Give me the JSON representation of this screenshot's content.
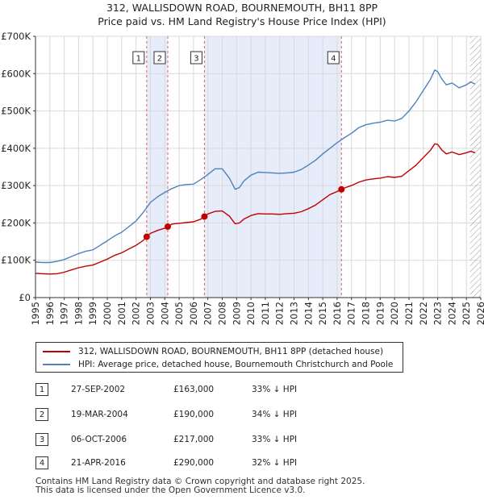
{
  "title_line1": "312, WALLISDOWN ROAD, BOURNEMOUTH, BH11 8PP",
  "title_line2": "Price paid vs. HM Land Registry's House Price Index (HPI)",
  "colors": {
    "property": "#c00000",
    "hpi": "#4f81bd",
    "shade": "#e6ecf9",
    "marker_line": "#e06060",
    "hatch": "#888888"
  },
  "chart_data": {
    "type": "line",
    "xlim": [
      1995,
      2026
    ],
    "ylim": [
      0,
      700000
    ],
    "x_ticks": [
      "1995",
      "1996",
      "1997",
      "1998",
      "1999",
      "2000",
      "2001",
      "2002",
      "2003",
      "2004",
      "2005",
      "2006",
      "2007",
      "2008",
      "2009",
      "2010",
      "2011",
      "2012",
      "2013",
      "2014",
      "2015",
      "2016",
      "2017",
      "2018",
      "2019",
      "2020",
      "2021",
      "2022",
      "2023",
      "2024",
      "2025",
      "2026"
    ],
    "y_ticks": [
      {
        "value": 0,
        "label": "£0"
      },
      {
        "value": 100000,
        "label": "£100K"
      },
      {
        "value": 200000,
        "label": "£200K"
      },
      {
        "value": 300000,
        "label": "£300K"
      },
      {
        "value": 400000,
        "label": "£400K"
      },
      {
        "value": 500000,
        "label": "£500K"
      },
      {
        "value": 600000,
        "label": "£600K"
      },
      {
        "value": 700000,
        "label": "£700K"
      }
    ],
    "hatch_from": 2025.25,
    "series": [
      {
        "name": "312, WALLISDOWN ROAD, BOURNEMOUTH, BH11 8PP (detached house)",
        "color": "#c00000",
        "points": [
          [
            1995.0,
            65000
          ],
          [
            1995.5,
            64000
          ],
          [
            1996.0,
            63000
          ],
          [
            1996.5,
            64000
          ],
          [
            1997.0,
            68000
          ],
          [
            1997.5,
            74000
          ],
          [
            1998.0,
            80000
          ],
          [
            1998.5,
            84000
          ],
          [
            1999.0,
            87000
          ],
          [
            1999.5,
            95000
          ],
          [
            2000.0,
            103000
          ],
          [
            2000.5,
            113000
          ],
          [
            2001.0,
            120000
          ],
          [
            2001.5,
            130000
          ],
          [
            2002.0,
            140000
          ],
          [
            2002.5,
            153000
          ],
          [
            2002.74,
            163000
          ],
          [
            2003.0,
            172000
          ],
          [
            2003.5,
            180000
          ],
          [
            2004.0,
            186000
          ],
          [
            2004.21,
            190000
          ],
          [
            2004.5,
            197000
          ],
          [
            2005.0,
            199000
          ],
          [
            2005.5,
            201000
          ],
          [
            2006.0,
            203000
          ],
          [
            2006.5,
            210000
          ],
          [
            2006.76,
            217000
          ],
          [
            2007.0,
            224000
          ],
          [
            2007.5,
            231000
          ],
          [
            2008.0,
            232000
          ],
          [
            2008.5,
            218000
          ],
          [
            2008.9,
            198000
          ],
          [
            2009.2,
            200000
          ],
          [
            2009.5,
            210000
          ],
          [
            2010.0,
            220000
          ],
          [
            2010.5,
            225000
          ],
          [
            2011.0,
            224000
          ],
          [
            2011.5,
            224000
          ],
          [
            2012.0,
            223000
          ],
          [
            2012.5,
            225000
          ],
          [
            2013.0,
            226000
          ],
          [
            2013.5,
            230000
          ],
          [
            2014.0,
            238000
          ],
          [
            2014.5,
            248000
          ],
          [
            2015.0,
            262000
          ],
          [
            2015.5,
            276000
          ],
          [
            2016.0,
            284000
          ],
          [
            2016.3,
            290000
          ],
          [
            2016.6,
            295000
          ],
          [
            2017.0,
            300000
          ],
          [
            2017.5,
            309000
          ],
          [
            2018.0,
            315000
          ],
          [
            2018.5,
            318000
          ],
          [
            2019.0,
            320000
          ],
          [
            2019.5,
            324000
          ],
          [
            2020.0,
            322000
          ],
          [
            2020.5,
            325000
          ],
          [
            2021.0,
            340000
          ],
          [
            2021.5,
            355000
          ],
          [
            2022.0,
            375000
          ],
          [
            2022.5,
            395000
          ],
          [
            2022.8,
            412000
          ],
          [
            2023.0,
            410000
          ],
          [
            2023.3,
            395000
          ],
          [
            2023.6,
            385000
          ],
          [
            2024.0,
            390000
          ],
          [
            2024.5,
            383000
          ],
          [
            2025.0,
            388000
          ],
          [
            2025.3,
            392000
          ],
          [
            2025.6,
            388000
          ]
        ]
      },
      {
        "name": "HPI: Average price, detached house, Bournemouth Christchurch and Poole",
        "color": "#4f81bd",
        "points": [
          [
            1995.0,
            95000
          ],
          [
            1995.5,
            94000
          ],
          [
            1996.0,
            94000
          ],
          [
            1996.5,
            97000
          ],
          [
            1997.0,
            102000
          ],
          [
            1997.5,
            110000
          ],
          [
            1998.0,
            118000
          ],
          [
            1998.5,
            124000
          ],
          [
            1999.0,
            128000
          ],
          [
            1999.5,
            140000
          ],
          [
            2000.0,
            152000
          ],
          [
            2000.5,
            165000
          ],
          [
            2001.0,
            175000
          ],
          [
            2001.5,
            190000
          ],
          [
            2002.0,
            205000
          ],
          [
            2002.5,
            228000
          ],
          [
            2003.0,
            255000
          ],
          [
            2003.5,
            270000
          ],
          [
            2004.0,
            282000
          ],
          [
            2004.5,
            292000
          ],
          [
            2005.0,
            300000
          ],
          [
            2005.5,
            303000
          ],
          [
            2006.0,
            304000
          ],
          [
            2006.5,
            316000
          ],
          [
            2007.0,
            330000
          ],
          [
            2007.5,
            345000
          ],
          [
            2008.0,
            345000
          ],
          [
            2008.5,
            320000
          ],
          [
            2008.9,
            290000
          ],
          [
            2009.2,
            295000
          ],
          [
            2009.5,
            312000
          ],
          [
            2010.0,
            328000
          ],
          [
            2010.5,
            336000
          ],
          [
            2011.0,
            335000
          ],
          [
            2011.5,
            334000
          ],
          [
            2012.0,
            333000
          ],
          [
            2012.5,
            334000
          ],
          [
            2013.0,
            336000
          ],
          [
            2013.5,
            343000
          ],
          [
            2014.0,
            355000
          ],
          [
            2014.5,
            368000
          ],
          [
            2015.0,
            385000
          ],
          [
            2015.5,
            400000
          ],
          [
            2016.0,
            415000
          ],
          [
            2016.5,
            428000
          ],
          [
            2017.0,
            440000
          ],
          [
            2017.5,
            455000
          ],
          [
            2018.0,
            463000
          ],
          [
            2018.5,
            467000
          ],
          [
            2019.0,
            470000
          ],
          [
            2019.5,
            475000
          ],
          [
            2020.0,
            473000
          ],
          [
            2020.5,
            480000
          ],
          [
            2021.0,
            500000
          ],
          [
            2021.5,
            525000
          ],
          [
            2022.0,
            555000
          ],
          [
            2022.5,
            585000
          ],
          [
            2022.8,
            610000
          ],
          [
            2023.0,
            605000
          ],
          [
            2023.3,
            585000
          ],
          [
            2023.6,
            570000
          ],
          [
            2024.0,
            575000
          ],
          [
            2024.5,
            562000
          ],
          [
            2025.0,
            570000
          ],
          [
            2025.3,
            578000
          ],
          [
            2025.6,
            572000
          ]
        ]
      }
    ],
    "sales": [
      {
        "num": "1",
        "x": 2002.74,
        "y": 163000
      },
      {
        "num": "2",
        "x": 2004.21,
        "y": 190000
      },
      {
        "num": "3",
        "x": 2006.76,
        "y": 217000
      },
      {
        "num": "4",
        "x": 2016.3,
        "y": 290000
      }
    ],
    "shaded_ranges": [
      [
        2002.74,
        2004.21
      ],
      [
        2006.76,
        2016.3
      ]
    ]
  },
  "legend": {
    "property_label": "312, WALLISDOWN ROAD, BOURNEMOUTH, BH11 8PP (detached house)",
    "hpi_label": "HPI: Average price, detached house, Bournemouth Christchurch and Poole"
  },
  "transactions": [
    {
      "num": "1",
      "date": "27-SEP-2002",
      "price": "£163,000",
      "hpi": "33% ↓ HPI"
    },
    {
      "num": "2",
      "date": "19-MAR-2004",
      "price": "£190,000",
      "hpi": "34% ↓ HPI"
    },
    {
      "num": "3",
      "date": "06-OCT-2006",
      "price": "£217,000",
      "hpi": "33% ↓ HPI"
    },
    {
      "num": "4",
      "date": "21-APR-2016",
      "price": "£290,000",
      "hpi": "32% ↓ HPI"
    }
  ],
  "footer": {
    "line1": "Contains HM Land Registry data © Crown copyright and database right 2025.",
    "line2": "This data is licensed under the Open Government Licence v3.0."
  }
}
